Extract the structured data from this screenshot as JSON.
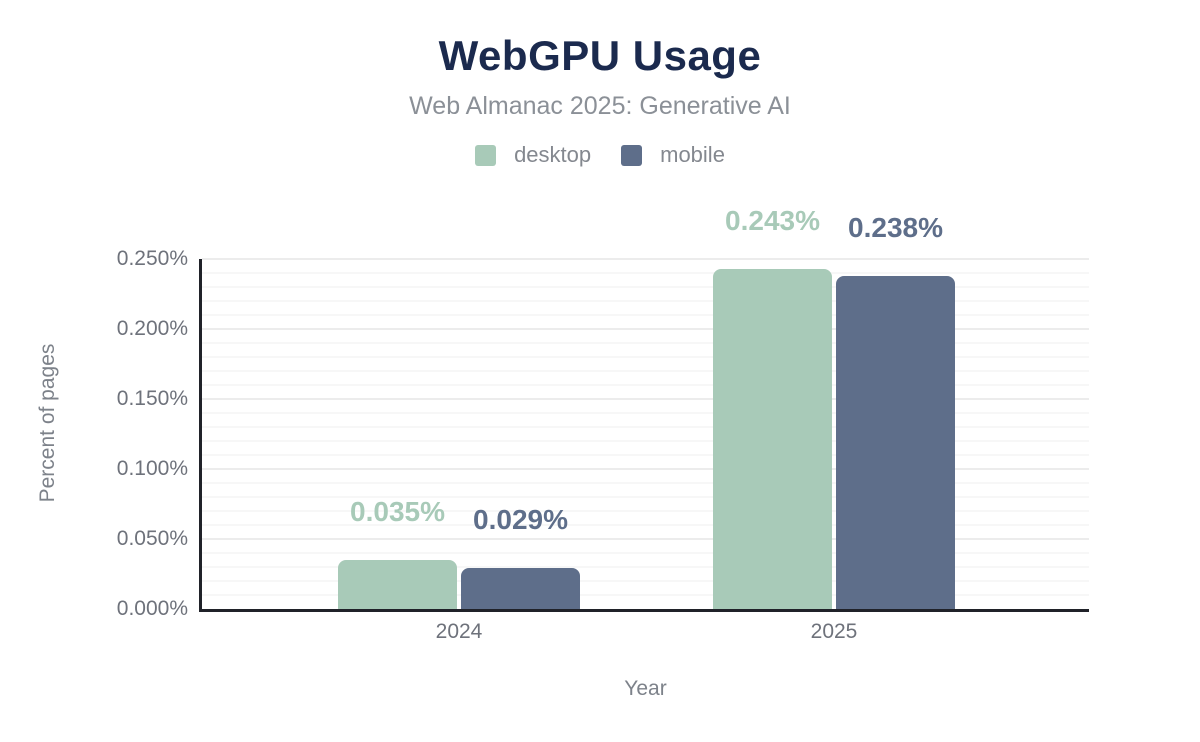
{
  "header": {
    "title": "WebGPU Usage",
    "subtitle": "Web Almanac 2025: Generative AI"
  },
  "legend": {
    "items": [
      {
        "label": "desktop",
        "color": "#a8cab8"
      },
      {
        "label": "mobile",
        "color": "#5e6e8a"
      }
    ]
  },
  "axes": {
    "y_title": "Percent of pages",
    "x_title": "Year",
    "y_ticks": [
      "0.000%",
      "0.050%",
      "0.100%",
      "0.150%",
      "0.200%",
      "0.250%"
    ],
    "x_ticks": [
      "2024",
      "2025"
    ]
  },
  "chart_data": {
    "type": "bar",
    "title": "WebGPU Usage",
    "subtitle": "Web Almanac 2025: Generative AI",
    "categories": [
      "2024",
      "2025"
    ],
    "series": [
      {
        "name": "desktop",
        "color": "#a8cab8",
        "values": [
          0.035,
          0.243
        ],
        "labels": [
          "0.035%",
          "0.243%"
        ]
      },
      {
        "name": "mobile",
        "color": "#5e6e8a",
        "values": [
          0.029,
          0.238
        ],
        "labels": [
          "0.029%",
          "0.238%"
        ]
      }
    ],
    "xlabel": "Year",
    "ylabel": "Percent of pages",
    "unit": "%",
    "ylim": [
      0,
      0.25
    ],
    "y_tick_step": 0.05,
    "y_minor_step": 0.01,
    "grid": "horizontal-minor-and-major",
    "legend_position": "top"
  },
  "colors": {
    "title": "#1b2a4e",
    "subtitle": "#8b9097",
    "tick_labels": "#6e727b",
    "axis_titles": "#7d828a",
    "axis_line": "#202229",
    "grid_minor": "#f7f7f7",
    "grid_major": "#ececec",
    "background": "#ffffff"
  }
}
